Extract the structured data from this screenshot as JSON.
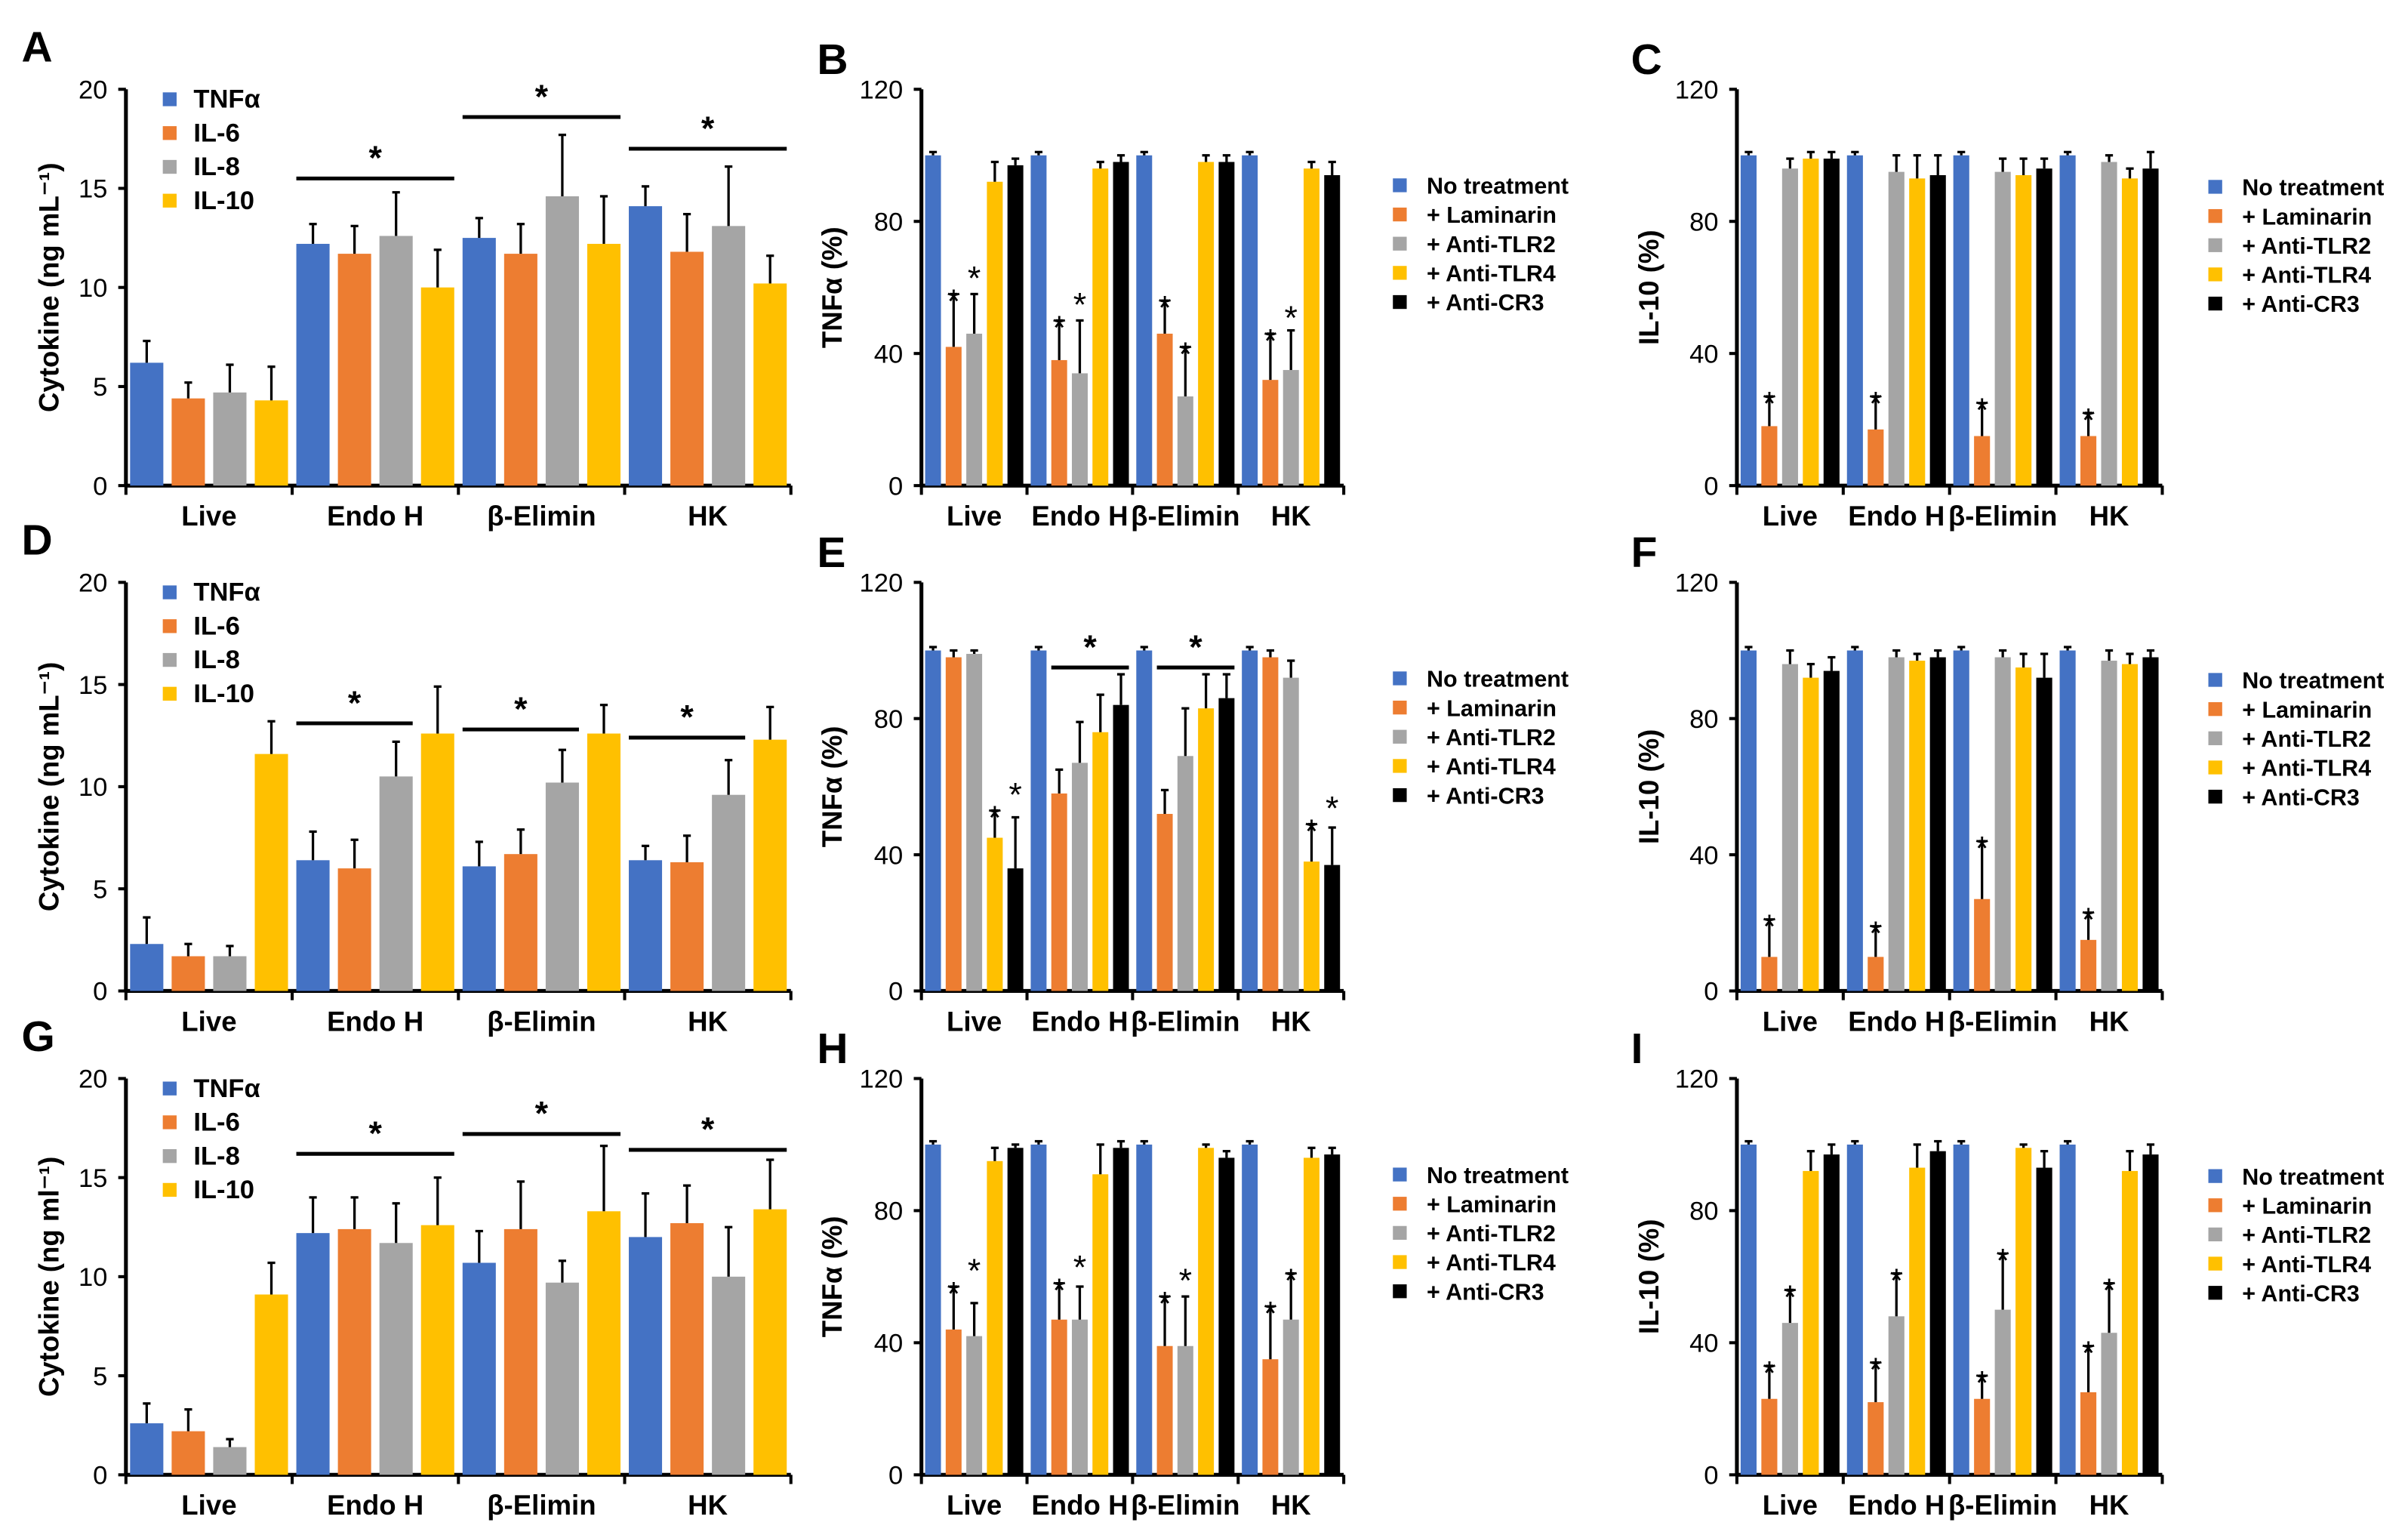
{
  "colors": {
    "blue": "#4472C4",
    "orange": "#ED7D31",
    "gray": "#A5A5A5",
    "yellow": "#FFC000",
    "black": "#000000"
  },
  "chart_data": [
    {
      "panel": "A",
      "type": "bar",
      "ylabel": "Cytokine (ng mL⁻¹)",
      "ylim": [
        0,
        20
      ],
      "yticks": [
        0,
        5,
        10,
        15,
        20
      ],
      "categories": [
        "Live",
        "Endo H",
        "β-Elimin",
        "HK"
      ],
      "series": [
        {
          "name": "TNFα",
          "color": "#4472C4",
          "values": [
            6.2,
            12.2,
            12.5,
            14.1
          ],
          "errors": [
            1.1,
            1.0,
            1.0,
            1.0
          ]
        },
        {
          "name": "IL-6",
          "color": "#ED7D31",
          "values": [
            4.4,
            11.7,
            11.7,
            11.8
          ],
          "errors": [
            0.8,
            1.4,
            1.5,
            1.9
          ]
        },
        {
          "name": "IL-8",
          "color": "#A5A5A5",
          "values": [
            4.7,
            12.6,
            14.6,
            13.1
          ],
          "errors": [
            1.4,
            2.2,
            3.1,
            3.0
          ]
        },
        {
          "name": "IL-10",
          "color": "#FFC000",
          "values": [
            4.3,
            10.0,
            12.2,
            10.2
          ],
          "errors": [
            1.7,
            1.9,
            2.4,
            1.4
          ]
        }
      ],
      "brackets": [
        {
          "group": 1,
          "from": 0,
          "to": 3,
          "y": 15.5,
          "label": "*"
        },
        {
          "group": 2,
          "from": 0,
          "to": 3,
          "y": 18.6,
          "label": "*"
        },
        {
          "group": 3,
          "from": 0,
          "to": 3,
          "y": 17.0,
          "label": "*"
        }
      ],
      "stars": []
    },
    {
      "panel": "B",
      "type": "bar",
      "ylabel": "TNFα (%)",
      "ylim": [
        0,
        120
      ],
      "yticks": [
        0,
        40,
        80,
        120
      ],
      "categories": [
        "Live",
        "Endo H",
        "β-Elimin",
        "HK"
      ],
      "series": [
        {
          "name": "No treatment",
          "color": "#4472C4",
          "values": [
            100,
            100,
            100,
            100
          ],
          "errors": [
            1,
            1,
            1,
            1
          ]
        },
        {
          "name": "+ Laminarin",
          "color": "#ED7D31",
          "values": [
            42,
            38,
            46,
            32
          ],
          "errors": [
            16,
            12,
            10,
            14
          ]
        },
        {
          "name": "+ Anti-TLR2",
          "color": "#A5A5A5",
          "values": [
            46,
            34,
            27,
            35
          ],
          "errors": [
            12,
            16,
            15,
            12
          ]
        },
        {
          "name": "+ Anti-TLR4",
          "color": "#FFC000",
          "values": [
            92,
            96,
            98,
            96
          ],
          "errors": [
            6,
            2,
            2,
            2
          ]
        },
        {
          "name": "+ Anti-CR3",
          "color": "#000000",
          "values": [
            97,
            98,
            98,
            94
          ],
          "errors": [
            2,
            2,
            2,
            4
          ]
        }
      ],
      "brackets": [],
      "stars": [
        {
          "group": 0,
          "series": 1,
          "label": "*"
        },
        {
          "group": 0,
          "series": 2,
          "label": "*"
        },
        {
          "group": 1,
          "series": 1,
          "label": "*"
        },
        {
          "group": 1,
          "series": 2,
          "label": "*"
        },
        {
          "group": 2,
          "series": 1,
          "label": "*"
        },
        {
          "group": 2,
          "series": 2,
          "label": "*"
        },
        {
          "group": 3,
          "series": 1,
          "label": "*"
        },
        {
          "group": 3,
          "series": 2,
          "label": "*"
        }
      ]
    },
    {
      "panel": "C",
      "type": "bar",
      "ylabel": "IL-10 (%)",
      "ylim": [
        0,
        120
      ],
      "yticks": [
        0,
        40,
        80,
        120
      ],
      "categories": [
        "Live",
        "Endo H",
        "β-Elimin",
        "HK"
      ],
      "series": [
        {
          "name": "No treatment",
          "color": "#4472C4",
          "values": [
            100,
            100,
            100,
            100
          ],
          "errors": [
            1,
            1,
            1,
            1
          ]
        },
        {
          "name": "+ Laminarin",
          "color": "#ED7D31",
          "values": [
            18,
            17,
            15,
            15
          ],
          "errors": [
            9,
            10,
            10,
            7
          ]
        },
        {
          "name": "+ Anti-TLR2",
          "color": "#A5A5A5",
          "values": [
            96,
            95,
            95,
            98
          ],
          "errors": [
            3,
            5,
            4,
            2
          ]
        },
        {
          "name": "+ Anti-TLR4",
          "color": "#FFC000",
          "values": [
            99,
            93,
            94,
            93
          ],
          "errors": [
            2,
            7,
            5,
            3
          ]
        },
        {
          "name": "+ Anti-CR3",
          "color": "#000000",
          "values": [
            99,
            94,
            96,
            96
          ],
          "errors": [
            2,
            6,
            3,
            5
          ]
        }
      ],
      "brackets": [],
      "stars": [
        {
          "group": 0,
          "series": 1,
          "label": "*"
        },
        {
          "group": 1,
          "series": 1,
          "label": "*"
        },
        {
          "group": 2,
          "series": 1,
          "label": "*"
        },
        {
          "group": 3,
          "series": 1,
          "label": "*"
        }
      ]
    },
    {
      "panel": "D",
      "type": "bar",
      "ylabel": "Cytokine (ng mL⁻¹)",
      "ylim": [
        0,
        20
      ],
      "yticks": [
        0,
        5,
        10,
        15,
        20
      ],
      "categories": [
        "Live",
        "Endo H",
        "β-Elimin",
        "HK"
      ],
      "series": [
        {
          "name": "TNFα",
          "color": "#4472C4",
          "values": [
            2.3,
            6.4,
            6.1,
            6.4
          ],
          "errors": [
            1.3,
            1.4,
            1.2,
            0.7
          ]
        },
        {
          "name": "IL-6",
          "color": "#ED7D31",
          "values": [
            1.7,
            6.0,
            6.7,
            6.3
          ],
          "errors": [
            0.6,
            1.4,
            1.2,
            1.3
          ]
        },
        {
          "name": "IL-8",
          "color": "#A5A5A5",
          "values": [
            1.7,
            10.5,
            10.2,
            9.6
          ],
          "errors": [
            0.5,
            1.7,
            1.6,
            1.7
          ]
        },
        {
          "name": "IL-10",
          "color": "#FFC000",
          "values": [
            11.6,
            12.6,
            12.6,
            12.3
          ],
          "errors": [
            1.6,
            2.3,
            1.4,
            1.6
          ]
        }
      ],
      "brackets": [
        {
          "group": 1,
          "from": 0,
          "to": 2,
          "y": 13.1,
          "label": "*"
        },
        {
          "group": 2,
          "from": 0,
          "to": 2,
          "y": 12.8,
          "label": "*"
        },
        {
          "group": 3,
          "from": 0,
          "to": 2,
          "y": 12.4,
          "label": "*"
        }
      ],
      "stars": []
    },
    {
      "panel": "E",
      "type": "bar",
      "ylabel": "TNFα (%)",
      "ylim": [
        0,
        120
      ],
      "yticks": [
        0,
        40,
        80,
        120
      ],
      "categories": [
        "Live",
        "Endo H",
        "β-Elimin",
        "HK"
      ],
      "series": [
        {
          "name": "No treatment",
          "color": "#4472C4",
          "values": [
            100,
            100,
            100,
            100
          ],
          "errors": [
            1,
            1,
            1,
            1
          ]
        },
        {
          "name": "+ Laminarin",
          "color": "#ED7D31",
          "values": [
            98,
            58,
            52,
            98
          ],
          "errors": [
            2,
            7,
            7,
            2
          ]
        },
        {
          "name": "+ Anti-TLR2",
          "color": "#A5A5A5",
          "values": [
            99,
            67,
            69,
            92
          ],
          "errors": [
            1,
            12,
            14,
            5
          ]
        },
        {
          "name": "+ Anti-TLR4",
          "color": "#FFC000",
          "values": [
            45,
            76,
            83,
            38
          ],
          "errors": [
            8,
            11,
            10,
            11
          ]
        },
        {
          "name": "+ Anti-CR3",
          "color": "#000000",
          "values": [
            36,
            84,
            86,
            37
          ],
          "errors": [
            15,
            9,
            7,
            11
          ]
        }
      ],
      "brackets": [
        {
          "group": 1,
          "from": 1,
          "to": 4,
          "y": 95,
          "label": "*"
        },
        {
          "group": 2,
          "from": 1,
          "to": 4,
          "y": 95,
          "label": "*"
        }
      ],
      "stars": [
        {
          "group": 0,
          "series": 3,
          "label": "*"
        },
        {
          "group": 0,
          "series": 4,
          "label": "*"
        },
        {
          "group": 3,
          "series": 3,
          "label": "*"
        },
        {
          "group": 3,
          "series": 4,
          "label": "*"
        }
      ]
    },
    {
      "panel": "F",
      "type": "bar",
      "ylabel": "IL-10 (%)",
      "ylim": [
        0,
        120
      ],
      "yticks": [
        0,
        40,
        80,
        120
      ],
      "categories": [
        "Live",
        "Endo H",
        "β-Elimin",
        "HK"
      ],
      "series": [
        {
          "name": "No treatment",
          "color": "#4472C4",
          "values": [
            100,
            100,
            100,
            100
          ],
          "errors": [
            1,
            1,
            1,
            1
          ]
        },
        {
          "name": "+ Laminarin",
          "color": "#ED7D31",
          "values": [
            10,
            10,
            27,
            15
          ],
          "errors": [
            11,
            9,
            17,
            8
          ]
        },
        {
          "name": "+ Anti-TLR2",
          "color": "#A5A5A5",
          "values": [
            96,
            98,
            98,
            97
          ],
          "errors": [
            4,
            2,
            2,
            3
          ]
        },
        {
          "name": "+ Anti-TLR4",
          "color": "#FFC000",
          "values": [
            92,
            97,
            95,
            96
          ],
          "errors": [
            4,
            2,
            4,
            3
          ]
        },
        {
          "name": "+ Anti-CR3",
          "color": "#000000",
          "values": [
            94,
            98,
            92,
            98
          ],
          "errors": [
            4,
            2,
            7,
            2
          ]
        }
      ],
      "brackets": [],
      "stars": [
        {
          "group": 0,
          "series": 1,
          "label": "*"
        },
        {
          "group": 1,
          "series": 1,
          "label": "*"
        },
        {
          "group": 2,
          "series": 1,
          "label": "*"
        },
        {
          "group": 3,
          "series": 1,
          "label": "*"
        }
      ]
    },
    {
      "panel": "G",
      "type": "bar",
      "ylabel": "Cytokine (ng ml⁻¹)",
      "ylim": [
        0,
        20
      ],
      "yticks": [
        0,
        5,
        10,
        15,
        20
      ],
      "categories": [
        "Live",
        "Endo H",
        "β-Elimin",
        "HK"
      ],
      "series": [
        {
          "name": "TNFα",
          "color": "#4472C4",
          "values": [
            2.6,
            12.2,
            10.7,
            12.0
          ],
          "errors": [
            1.0,
            1.8,
            1.6,
            2.2
          ]
        },
        {
          "name": "IL-6",
          "color": "#ED7D31",
          "values": [
            2.2,
            12.4,
            12.4,
            12.7
          ],
          "errors": [
            1.1,
            1.6,
            2.4,
            1.9
          ]
        },
        {
          "name": "IL-8",
          "color": "#A5A5A5",
          "values": [
            1.4,
            11.7,
            9.7,
            10.0
          ],
          "errors": [
            0.4,
            2.0,
            1.1,
            2.5
          ]
        },
        {
          "name": "IL-10",
          "color": "#FFC000",
          "values": [
            9.1,
            12.6,
            13.3,
            13.4
          ],
          "errors": [
            1.6,
            2.4,
            3.3,
            2.5
          ]
        }
      ],
      "brackets": [
        {
          "group": 1,
          "from": 0,
          "to": 3,
          "y": 16.2,
          "label": "*"
        },
        {
          "group": 2,
          "from": 0,
          "to": 3,
          "y": 17.2,
          "label": "*"
        },
        {
          "group": 3,
          "from": 0,
          "to": 3,
          "y": 16.4,
          "label": "*"
        }
      ],
      "stars": []
    },
    {
      "panel": "H",
      "type": "bar",
      "ylabel": "TNFα (%)",
      "ylim": [
        0,
        120
      ],
      "yticks": [
        0,
        40,
        80,
        120
      ],
      "categories": [
        "Live",
        "Endo H",
        "β-Elimin",
        "HK"
      ],
      "series": [
        {
          "name": "No treatment",
          "color": "#4472C4",
          "values": [
            100,
            100,
            100,
            100
          ],
          "errors": [
            1,
            1,
            1,
            1
          ]
        },
        {
          "name": "+ Laminarin",
          "color": "#ED7D31",
          "values": [
            44,
            47,
            39,
            35
          ],
          "errors": [
            13,
            11,
            15,
            16
          ]
        },
        {
          "name": "+ Anti-TLR2",
          "color": "#A5A5A5",
          "values": [
            42,
            47,
            39,
            47
          ],
          "errors": [
            10,
            10,
            15,
            14
          ]
        },
        {
          "name": "+ Anti-TLR4",
          "color": "#FFC000",
          "values": [
            95,
            91,
            99,
            96
          ],
          "errors": [
            4,
            9,
            1,
            3
          ]
        },
        {
          "name": "+ Anti-CR3",
          "color": "#000000",
          "values": [
            99,
            99,
            96,
            97
          ],
          "errors": [
            1,
            2,
            2,
            2
          ]
        }
      ],
      "brackets": [],
      "stars": [
        {
          "group": 0,
          "series": 1,
          "label": "*"
        },
        {
          "group": 0,
          "series": 2,
          "label": "*"
        },
        {
          "group": 1,
          "series": 1,
          "label": "*"
        },
        {
          "group": 1,
          "series": 2,
          "label": "*"
        },
        {
          "group": 2,
          "series": 1,
          "label": "*"
        },
        {
          "group": 2,
          "series": 2,
          "label": "*"
        },
        {
          "group": 3,
          "series": 1,
          "label": "*"
        },
        {
          "group": 3,
          "series": 2,
          "label": "*"
        }
      ]
    },
    {
      "panel": "I",
      "type": "bar",
      "ylabel": "IL-10 (%)",
      "ylim": [
        0,
        120
      ],
      "yticks": [
        0,
        40,
        80,
        120
      ],
      "categories": [
        "Live",
        "Endo H",
        "β-Elimin",
        "HK"
      ],
      "series": [
        {
          "name": "No treatment",
          "color": "#4472C4",
          "values": [
            100,
            100,
            100,
            100
          ],
          "errors": [
            1,
            1,
            1,
            1
          ]
        },
        {
          "name": "+ Laminarin",
          "color": "#ED7D31",
          "values": [
            23,
            22,
            23,
            25
          ],
          "errors": [
            10,
            12,
            7,
            14
          ]
        },
        {
          "name": "+ Anti-TLR2",
          "color": "#A5A5A5",
          "values": [
            46,
            48,
            50,
            43
          ],
          "errors": [
            10,
            13,
            17,
            15
          ]
        },
        {
          "name": "+ Anti-TLR4",
          "color": "#FFC000",
          "values": [
            92,
            93,
            99,
            92
          ],
          "errors": [
            6,
            7,
            1,
            6
          ]
        },
        {
          "name": "+ Anti-CR3",
          "color": "#000000",
          "values": [
            97,
            98,
            93,
            97
          ],
          "errors": [
            3,
            3,
            5,
            3
          ]
        }
      ],
      "brackets": [],
      "stars": [
        {
          "group": 0,
          "series": 1,
          "label": "*"
        },
        {
          "group": 0,
          "series": 2,
          "label": "*"
        },
        {
          "group": 1,
          "series": 1,
          "label": "*"
        },
        {
          "group": 1,
          "series": 2,
          "label": "*"
        },
        {
          "group": 2,
          "series": 1,
          "label": "*"
        },
        {
          "group": 2,
          "series": 2,
          "label": "*"
        },
        {
          "group": 3,
          "series": 1,
          "label": "*"
        },
        {
          "group": 3,
          "series": 2,
          "label": "*"
        }
      ]
    }
  ]
}
